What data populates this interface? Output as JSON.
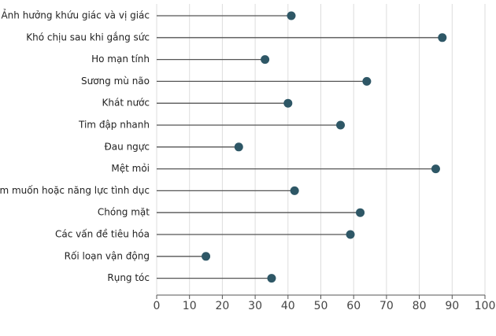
{
  "chart_data": {
    "type": "lollipop",
    "categories": [
      "Ảnh hưởng khứu giác và vị giác",
      "Khó chịu sau khi gắng sức",
      "Ho mạn tính",
      "Sương mù não",
      "Khát nước",
      "Tim đập nhanh",
      "Đau ngực",
      "Mệt mỏi",
      "Ham muốn hoặc năng lực tình dục",
      "Chóng mặt",
      "Các vấn đề tiêu hóa",
      "Rối loạn vận động",
      "Rụng tóc"
    ],
    "values": [
      41,
      87,
      33,
      64,
      40,
      56,
      25,
      85,
      42,
      62,
      59,
      15,
      35
    ],
    "color": "#2e5766",
    "xlim": [
      0,
      100
    ],
    "xticks": [
      0,
      10,
      20,
      30,
      40,
      50,
      60,
      70,
      80,
      90,
      100
    ],
    "grid": true
  }
}
